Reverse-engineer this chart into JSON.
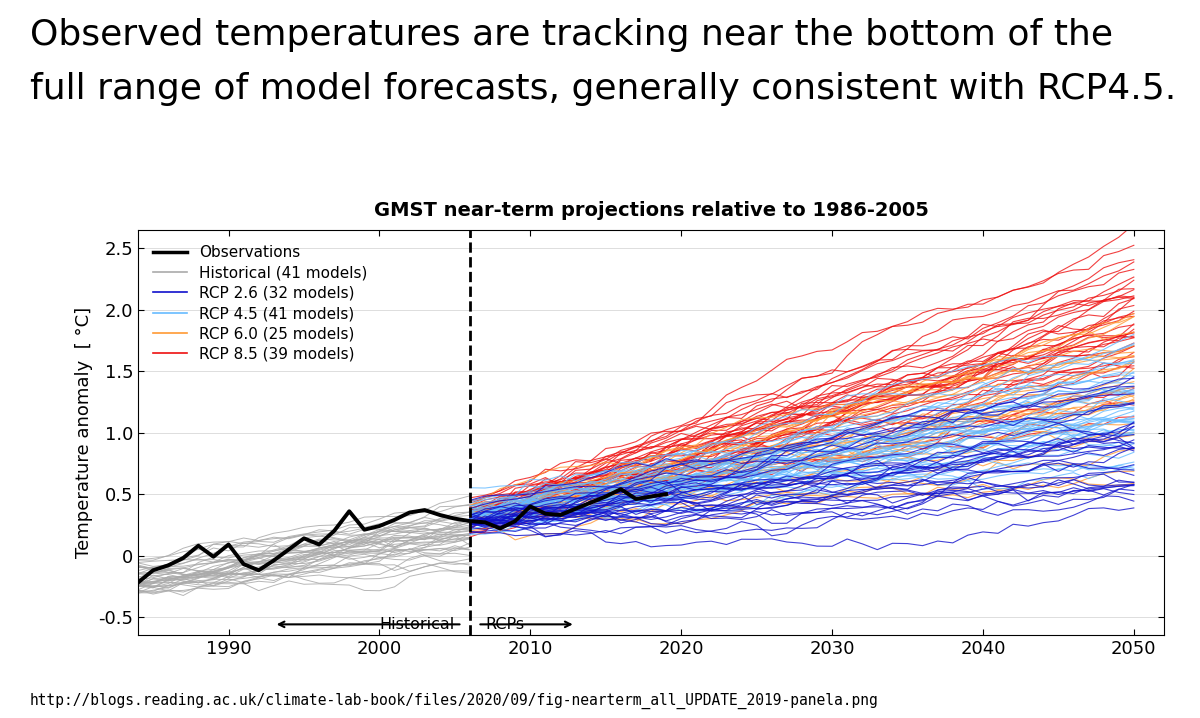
{
  "title": "GMST near-term projections relative to 1986-2005",
  "header_line1": "Observed temperatures are tracking near the bottom of the",
  "header_line2": "full range of model forecasts, generally consistent with RCP4.5.",
  "footer": "http://blogs.reading.ac.uk/climate-lab-book/files/2020/09/fig-nearterm_all_UPDATE_2019-panela.png",
  "ylabel": "Temperature anomaly  [ °C]",
  "xlim": [
    1984,
    2052
  ],
  "ylim": [
    -0.65,
    2.65
  ],
  "xticks": [
    1990,
    2000,
    2010,
    2020,
    2030,
    2040,
    2050
  ],
  "yticks": [
    -0.5,
    0.0,
    0.5,
    1.0,
    1.5,
    2.0,
    2.5
  ],
  "split_year": 2006,
  "historical_start": 1984,
  "historical_end": 2006,
  "projection_start": 2006,
  "projection_end": 2051,
  "n_historical": 41,
  "n_rcp26": 32,
  "n_rcp45": 41,
  "n_rcp60": 25,
  "n_rcp85": 39,
  "obs_color": "#000000",
  "historical_color": "#aaaaaa",
  "rcp26_color": "#1111CC",
  "rcp45_color": "#66BBFF",
  "rcp60_color": "#FF9933",
  "rcp85_color": "#EE1111",
  "background_color": "#ffffff",
  "legend_labels": [
    "Observations",
    "Historical (41 models)",
    "RCP 2.6 (32 models)",
    "RCP 4.5 (41 models)",
    "RCP 6.0 (25 models)",
    "RCP 8.5 (39 models)"
  ],
  "annotation_text_left": "Historical",
  "annotation_text_right": "RCPs",
  "obs_data_years": [
    1984,
    1985,
    1986,
    1987,
    1988,
    1989,
    1990,
    1991,
    1992,
    1993,
    1994,
    1995,
    1996,
    1997,
    1998,
    1999,
    2000,
    2001,
    2002,
    2003,
    2004,
    2005,
    2006,
    2007,
    2008,
    2009,
    2010,
    2011,
    2012,
    2013,
    2014,
    2015,
    2016,
    2017,
    2018,
    2019
  ],
  "obs_data_vals": [
    -0.22,
    -0.12,
    -0.08,
    -0.02,
    0.08,
    -0.01,
    0.09,
    -0.07,
    -0.12,
    -0.04,
    0.05,
    0.14,
    0.09,
    0.2,
    0.36,
    0.21,
    0.24,
    0.29,
    0.35,
    0.37,
    0.33,
    0.3,
    0.28,
    0.27,
    0.22,
    0.28,
    0.4,
    0.34,
    0.33,
    0.38,
    0.43,
    0.48,
    0.54,
    0.46,
    0.48,
    0.5
  ]
}
